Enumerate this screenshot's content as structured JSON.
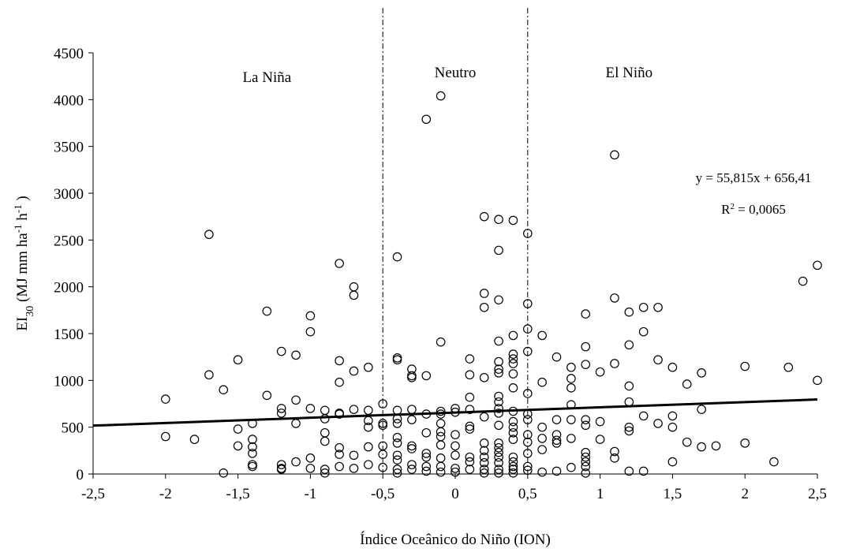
{
  "chart_data": {
    "type": "scatter",
    "xlabel": "Índice Oceânico do Niño (ION)",
    "ylabel_parts": [
      {
        "text": "EI",
        "pos": "base"
      },
      {
        "text": "30",
        "pos": "sub"
      },
      {
        "text": " (MJ mm ha",
        "pos": "base"
      },
      {
        "text": "-1",
        "pos": "sup"
      },
      {
        "text": " h",
        "pos": "base"
      },
      {
        "text": "-1",
        "pos": "sup"
      },
      {
        "text": " )",
        "pos": "base"
      }
    ],
    "xlim": [
      -2.5,
      2.5
    ],
    "xticks": [
      {
        "value": -2.5,
        "label": "-2,5"
      },
      -2,
      {
        "value": -1.5,
        "label": "-1,5"
      },
      -1,
      {
        "value": -0.5,
        "label": "-0,5"
      },
      0,
      {
        "value": 0.5,
        "label": "0,5"
      },
      1,
      {
        "value": 1.5,
        "label": "1,5"
      },
      2,
      {
        "value": 2.5,
        "label": "2,5"
      }
    ],
    "ylim": [
      0,
      4500
    ],
    "yticks": [
      0,
      500,
      1000,
      1500,
      2000,
      2500,
      3000,
      3500,
      4000,
      4500
    ],
    "vlines": [
      -0.5,
      0.5
    ],
    "regions": [
      "La Niña",
      "Neutro",
      "El Niño"
    ],
    "trendline": {
      "slope": 55.815,
      "intercept": 656.41,
      "equation": "y = 55,815x + 656,41",
      "r_squared_label": "R",
      "r_squared_sup": "2",
      "r_squared_value": " = 0,0065",
      "color": "#000000"
    },
    "series": [
      {
        "color": "#000000",
        "x": [
          -2,
          -2,
          -1.8,
          -1.7,
          -1.7,
          -1.6,
          -1.6,
          -1.5,
          -1.5,
          -1.5,
          -1.4,
          -1.4,
          -1.4,
          -1.4,
          -1.4,
          -1.4,
          -1.3,
          -1.3,
          -1.2,
          -1.2,
          -1.2,
          -1.2,
          -1.2,
          -1.2,
          -1.1,
          -1.1,
          -1.1,
          -1.1,
          -1,
          -1,
          -1,
          -1,
          -1,
          -0.9,
          -0.9,
          -0.9,
          -0.9,
          -0.9,
          -0.9,
          -0.8,
          -0.8,
          -0.8,
          -0.8,
          -0.8,
          -0.8,
          -0.8,
          -0.8,
          -0.7,
          -0.7,
          -0.7,
          -0.7,
          -0.7,
          -0.7,
          -0.6,
          -0.6,
          -0.6,
          -0.6,
          -0.6,
          -0.6,
          -0.5,
          -0.5,
          -0.5,
          -0.5,
          -0.5,
          -0.5,
          -0.4,
          -0.4,
          -0.4,
          -0.4,
          -0.4,
          -0.4,
          -0.4,
          -0.4,
          -0.4,
          -0.4,
          -0.4,
          -0.4,
          -0.3,
          -0.3,
          -0.3,
          -0.3,
          -0.3,
          -0.3,
          -0.3,
          -0.3,
          -0.3,
          -0.2,
          -0.2,
          -0.2,
          -0.2,
          -0.2,
          -0.2,
          -0.2,
          -0.2,
          -0.1,
          -0.1,
          -0.1,
          -0.1,
          -0.1,
          -0.1,
          -0.1,
          -0.1,
          -0.1,
          -0.1,
          -0.1,
          0,
          0,
          0,
          0,
          0,
          0,
          0,
          0.1,
          0.1,
          0.1,
          0.1,
          0.1,
          0.1,
          0.1,
          0.1,
          0.1,
          0.2,
          0.2,
          0.2,
          0.2,
          0.2,
          0.2,
          0.2,
          0.2,
          0.2,
          0.2,
          0.2,
          0.3,
          0.3,
          0.3,
          0.3,
          0.3,
          0.3,
          0.3,
          0.3,
          0.3,
          0.3,
          0.3,
          0.3,
          0.3,
          0.3,
          0.3,
          0.3,
          0.3,
          0.3,
          0.3,
          0.4,
          0.4,
          0.4,
          0.4,
          0.4,
          0.4,
          0.4,
          0.4,
          0.4,
          0.4,
          0.4,
          0.4,
          0.4,
          0.4,
          0.4,
          0.4,
          0.4,
          0.5,
          0.5,
          0.5,
          0.5,
          0.5,
          0.5,
          0.5,
          0.5,
          0.5,
          0.5,
          0.5,
          0.5,
          0.6,
          0.6,
          0.6,
          0.6,
          0.6,
          0.6,
          0.7,
          0.7,
          0.7,
          0.7,
          0.7,
          0.7,
          0.8,
          0.8,
          0.8,
          0.8,
          0.8,
          0.8,
          0.8,
          0.9,
          0.9,
          0.9,
          0.9,
          0.9,
          0.9,
          0.9,
          0.9,
          0.9,
          0.9,
          1,
          1,
          1,
          1.1,
          1.1,
          1.1,
          1.1,
          1.1,
          1.2,
          1.2,
          1.2,
          1.2,
          1.2,
          1.2,
          1.2,
          1.3,
          1.3,
          1.3,
          1.3,
          1.4,
          1.4,
          1.4,
          1.5,
          1.5,
          1.5,
          1.5,
          1.6,
          1.6,
          1.7,
          1.7,
          1.7,
          1.8,
          2,
          2,
          2.2,
          2.3,
          2.4,
          2.5,
          2.5
        ],
        "values": [
          800,
          400,
          370,
          2560,
          1060,
          900,
          10,
          1220,
          480,
          300,
          540,
          370,
          290,
          220,
          100,
          80,
          1740,
          840,
          1310,
          700,
          650,
          100,
          60,
          50,
          1270,
          790,
          540,
          130,
          1690,
          1520,
          700,
          170,
          60,
          680,
          590,
          440,
          350,
          50,
          10,
          2250,
          1210,
          980,
          650,
          640,
          280,
          210,
          80,
          2000,
          1910,
          1100,
          690,
          200,
          60,
          1140,
          680,
          570,
          500,
          290,
          100,
          750,
          540,
          520,
          300,
          210,
          70,
          2320,
          1240,
          1220,
          680,
          590,
          540,
          390,
          330,
          200,
          150,
          50,
          10,
          1120,
          1030,
          1050,
          690,
          580,
          300,
          270,
          100,
          50,
          3790,
          1050,
          640,
          440,
          220,
          180,
          80,
          30,
          4040,
          1410,
          670,
          640,
          540,
          450,
          400,
          310,
          170,
          80,
          20,
          700,
          660,
          420,
          300,
          200,
          60,
          20,
          1230,
          1060,
          820,
          690,
          510,
          480,
          180,
          130,
          50,
          2750,
          1930,
          1780,
          1030,
          610,
          330,
          250,
          180,
          120,
          50,
          10,
          2720,
          2390,
          1860,
          1420,
          1200,
          1120,
          1080,
          830,
          770,
          700,
          650,
          520,
          330,
          280,
          230,
          180,
          120,
          50,
          10,
          2710,
          1480,
          1280,
          1230,
          1180,
          1070,
          920,
          670,
          560,
          500,
          440,
          370,
          180,
          130,
          80,
          50,
          10,
          2570,
          1820,
          1550,
          1310,
          860,
          640,
          580,
          420,
          340,
          220,
          80,
          40,
          1480,
          980,
          500,
          380,
          260,
          20,
          1250,
          580,
          420,
          360,
          330,
          30,
          1140,
          1020,
          920,
          740,
          580,
          380,
          70,
          1710,
          1360,
          1170,
          580,
          520,
          230,
          180,
          130,
          80,
          10,
          1090,
          560,
          370,
          3410,
          1880,
          1180,
          240,
          170,
          1730,
          1380,
          940,
          770,
          500,
          460,
          30,
          1780,
          1520,
          620,
          30,
          1780,
          1220,
          540,
          1140,
          620,
          500,
          130,
          960,
          340,
          1080,
          690,
          290,
          300,
          1150,
          330,
          130,
          1140,
          2060,
          2230,
          1000
        ]
      }
    ]
  }
}
